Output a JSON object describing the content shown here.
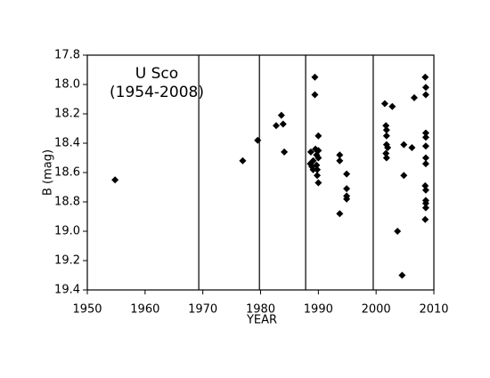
{
  "chart_data": {
    "type": "scatter",
    "annotation": [
      "U Sco",
      "(1954-2008)"
    ],
    "x_label": "YEAR",
    "y_label": "B (mag)",
    "color": "#000000",
    "marker": "diamond",
    "y_inverted": true,
    "xlim": [
      1950,
      2010
    ],
    "xticks": [
      1950,
      1960,
      1970,
      1980,
      1990,
      2000,
      2010
    ],
    "ylim": [
      17.8,
      19.4
    ],
    "yticks": [
      17.8,
      {
        "value": 18,
        "label": "18.0"
      },
      18.2,
      18.4,
      18.6,
      18.8,
      {
        "value": 19,
        "label": "19.0"
      },
      19.2,
      19.4
    ],
    "vlines": [
      1969.3,
      1979.8,
      1987.8,
      1999.5
    ],
    "x": [
      1954.8,
      1976.9,
      1979.5,
      1982.7,
      1983.6,
      1983.9,
      1984.1,
      1989.4,
      1989.4,
      1990.0,
      1989.5,
      1990.0,
      1988.7,
      1989.7,
      1990.0,
      1989.1,
      1988.6,
      1989.7,
      1988.9,
      1989.8,
      1989.1,
      1989.8,
      1990.0,
      1993.7,
      1993.7,
      1993.7,
      1994.9,
      1994.9,
      1994.9,
      1994.9,
      2001.5,
      2001.7,
      2001.8,
      2001.8,
      2001.8,
      2002.0,
      2001.7,
      2001.8,
      2002.8,
      2003.7,
      2004.8,
      2004.8,
      2004.5,
      2006.2,
      2006.6,
      2008.5,
      2008.6,
      2008.6,
      2008.6,
      2008.6,
      2008.6,
      2008.6,
      2008.6,
      2008.5,
      2008.6,
      2008.6,
      2008.6,
      2008.6,
      2008.5
    ],
    "values": [
      18.65,
      18.52,
      18.38,
      18.28,
      18.21,
      18.27,
      18.46,
      17.95,
      18.07,
      18.35,
      18.44,
      18.45,
      18.46,
      18.48,
      18.5,
      18.52,
      18.54,
      18.55,
      18.56,
      18.58,
      18.58,
      18.62,
      18.67,
      18.48,
      18.52,
      18.88,
      18.61,
      18.71,
      18.76,
      18.78,
      18.13,
      18.28,
      18.31,
      18.35,
      18.41,
      18.43,
      18.47,
      18.5,
      18.15,
      19.0,
      18.41,
      18.62,
      19.3,
      18.43,
      18.09,
      17.95,
      18.02,
      18.07,
      18.33,
      18.36,
      18.42,
      18.5,
      18.54,
      18.69,
      18.72,
      18.79,
      18.81,
      18.84,
      18.92
    ]
  }
}
